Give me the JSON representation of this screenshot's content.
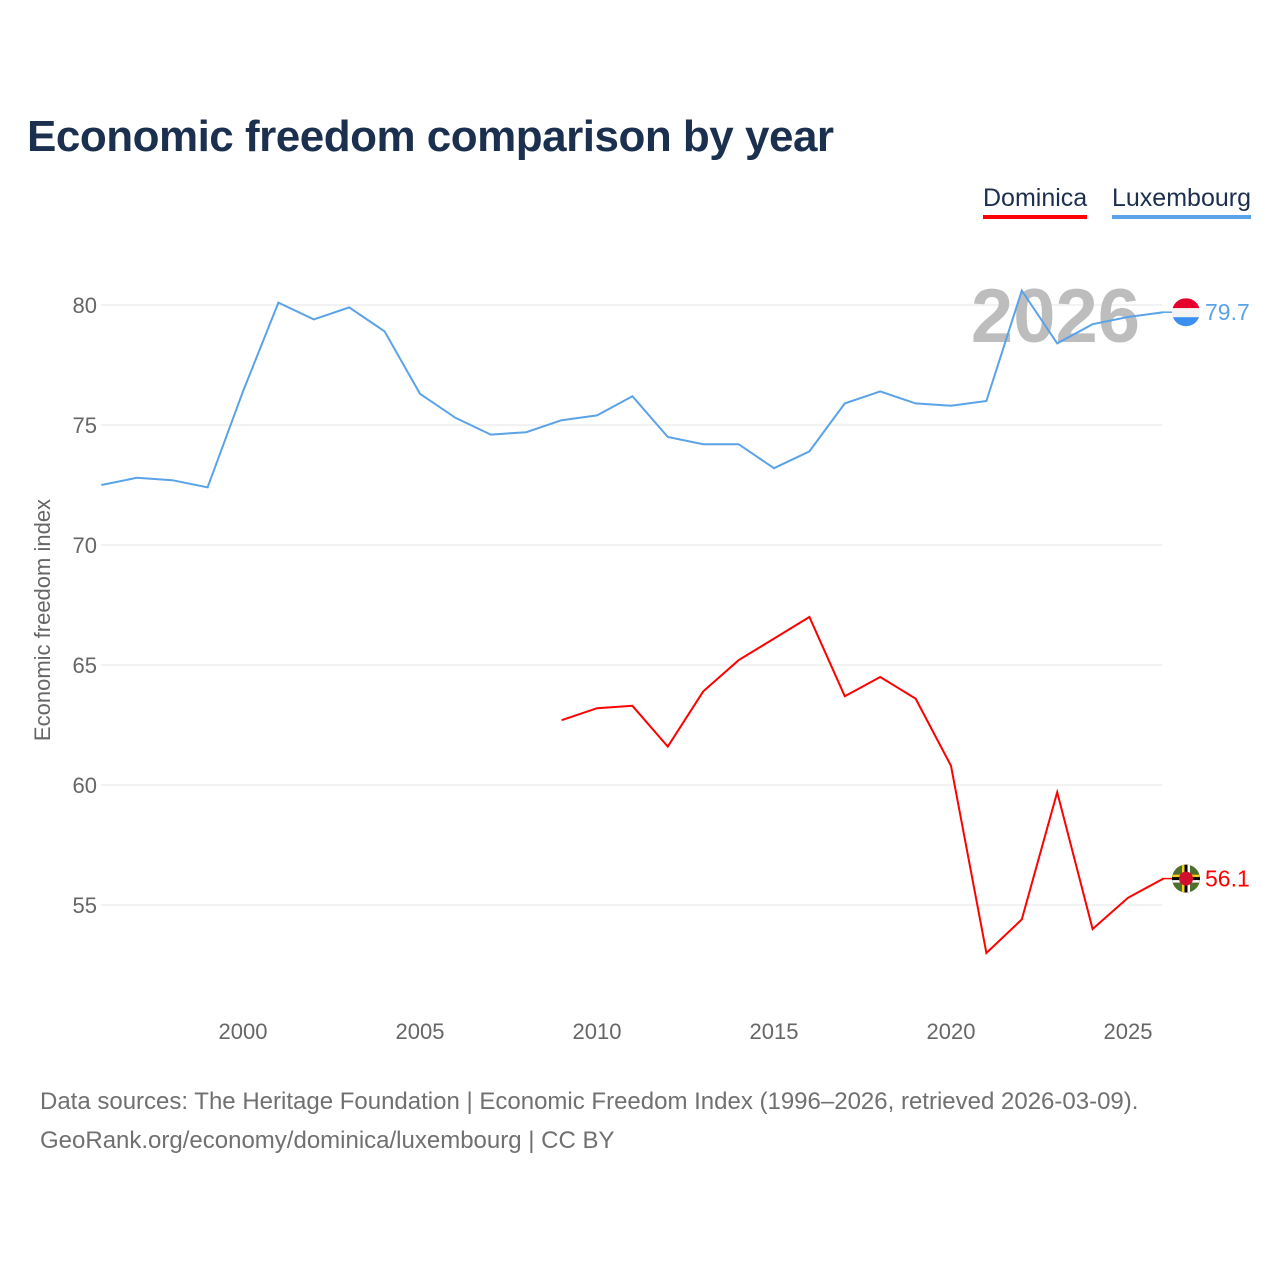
{
  "title": "Economic freedom comparison by year",
  "footer": {
    "line1": "Data sources: The Heritage Foundation | Economic Freedom Index (1996–2026, retrieved 2026-03-09).",
    "line2": "GeoRank.org/economy/dominica/luxembourg | CC BY"
  },
  "chart_data": {
    "type": "line",
    "title": "Economic freedom comparison by year",
    "xlabel": "",
    "ylabel": "Economic freedom index",
    "xlim": [
      1996,
      2026
    ],
    "ylim": [
      51,
      83
    ],
    "x_ticks": [
      2000,
      2005,
      2010,
      2015,
      2020,
      2025
    ],
    "y_ticks": [
      55,
      60,
      65,
      70,
      75,
      80
    ],
    "grid": true,
    "legend_position": "top-right",
    "year_watermark": "2026",
    "series": [
      {
        "name": "Dominica",
        "color": "#ff0000",
        "end_label": "56.1",
        "x": [
          2009,
          2010,
          2011,
          2012,
          2013,
          2014,
          2015,
          2016,
          2017,
          2018,
          2019,
          2020,
          2021,
          2022,
          2023,
          2024,
          2025,
          2026
        ],
        "values": [
          62.7,
          63.2,
          63.3,
          61.6,
          63.9,
          65.2,
          66.1,
          67.0,
          63.7,
          64.5,
          63.6,
          60.8,
          53.0,
          54.4,
          59.7,
          54.0,
          55.3,
          56.1
        ]
      },
      {
        "name": "Luxembourg",
        "color": "#5ba3e8",
        "end_label": "79.7",
        "x": [
          1996,
          1997,
          1998,
          1999,
          2000,
          2001,
          2002,
          2003,
          2004,
          2005,
          2006,
          2007,
          2008,
          2009,
          2010,
          2011,
          2012,
          2013,
          2014,
          2015,
          2016,
          2017,
          2018,
          2019,
          2020,
          2021,
          2022,
          2023,
          2024,
          2025,
          2026
        ],
        "values": [
          72.5,
          72.8,
          72.7,
          72.4,
          76.4,
          80.1,
          79.4,
          79.9,
          78.9,
          76.3,
          75.3,
          74.6,
          74.7,
          75.2,
          75.4,
          76.2,
          74.5,
          74.2,
          74.2,
          73.2,
          73.9,
          75.9,
          76.4,
          75.9,
          75.8,
          76.0,
          80.6,
          78.4,
          79.2,
          79.5,
          79.7
        ]
      }
    ]
  }
}
